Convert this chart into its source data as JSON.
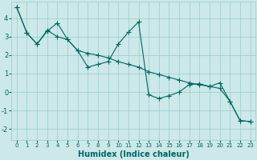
{
  "title": "",
  "xlabel": "Humidex (Indice chaleur)",
  "ylabel": "",
  "background_color": "#cce8e8",
  "grid_color": "#99cccc",
  "line_color": "#006666",
  "xlim": [
    -0.5,
    23.5
  ],
  "ylim": [
    -2.6,
    4.9
  ],
  "xticks": [
    0,
    1,
    2,
    3,
    4,
    5,
    6,
    7,
    8,
    9,
    10,
    11,
    12,
    13,
    14,
    15,
    16,
    17,
    18,
    19,
    20,
    21,
    22,
    23
  ],
  "yticks": [
    -2,
    -1,
    0,
    1,
    2,
    3,
    4
  ],
  "line1_x": [
    0,
    1,
    2,
    3,
    4,
    5,
    6,
    7,
    8,
    9,
    10,
    11,
    12,
    13,
    14,
    15,
    16,
    17,
    18,
    19,
    20,
    21,
    22,
    23
  ],
  "line1_y": [
    4.6,
    3.2,
    2.6,
    3.3,
    3.75,
    2.85,
    2.25,
    1.35,
    1.5,
    1.65,
    2.6,
    3.25,
    3.8,
    -0.15,
    -0.35,
    -0.2,
    0.0,
    0.4,
    0.45,
    0.3,
    0.5,
    -0.5,
    -1.55,
    -1.6
  ],
  "line2_x": [
    0,
    1,
    2,
    3,
    4,
    5,
    6,
    7,
    8,
    9,
    10,
    11,
    12,
    13,
    14,
    15,
    16,
    17,
    18,
    19,
    20,
    21,
    22,
    23
  ],
  "line2_y": [
    4.6,
    3.2,
    2.6,
    3.35,
    3.0,
    2.85,
    2.25,
    2.1,
    2.0,
    1.85,
    1.65,
    1.5,
    1.35,
    1.1,
    0.95,
    0.8,
    0.65,
    0.5,
    0.4,
    0.3,
    0.2,
    -0.5,
    -1.55,
    -1.6
  ],
  "marker_size": 4,
  "line_width": 0.8,
  "xlabel_fontsize": 7,
  "tick_fontsize": 5
}
